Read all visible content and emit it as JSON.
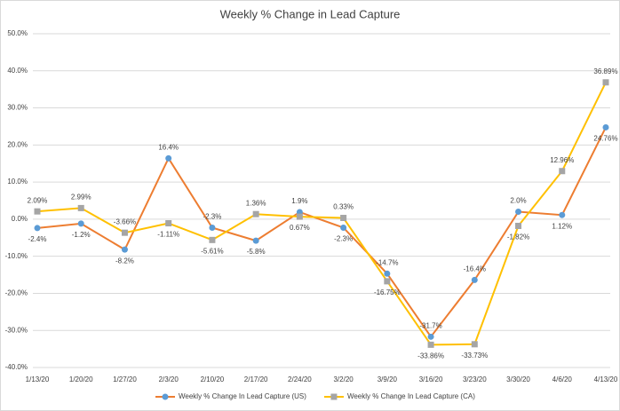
{
  "chart_data": {
    "type": "line",
    "title": "Weekly % Change in Lead Capture",
    "categories": [
      "1/13/20",
      "1/20/20",
      "1/27/20",
      "2/3/20",
      "2/10/20",
      "2/17/20",
      "2/24/20",
      "3/2/20",
      "3/9/20",
      "3/16/20",
      "3/23/20",
      "3/30/20",
      "4/6/20",
      "4/13/20"
    ],
    "series": [
      {
        "name": "Weekly % Change In Lead Capture (US)",
        "color": "#ed7d31",
        "marker_color": "#5b9bd5",
        "values": [
          -2.4,
          -1.2,
          -8.2,
          16.4,
          -2.3,
          -5.8,
          1.9,
          -2.3,
          -14.7,
          -31.7,
          -16.4,
          2.0,
          1.12,
          24.76
        ],
        "value_labels": [
          "-2.4%",
          "-1.2%",
          "-8.2%",
          "16.4%",
          "-2.3%",
          "-5.8%",
          "1.9%",
          "-2.3%",
          "-14.7%",
          "-31.7%",
          "-16.4%",
          "2.0%",
          "1.12%",
          "24.76%"
        ]
      },
      {
        "name": "Weekly % Change In Lead Capture (CA)",
        "color": "#ffc000",
        "marker_color": "#a5a5a5",
        "values": [
          2.09,
          2.99,
          -3.66,
          -1.11,
          -5.61,
          1.36,
          0.67,
          0.33,
          -16.75,
          -33.86,
          -33.73,
          -1.82,
          12.96,
          36.89
        ],
        "value_labels": [
          "2.09%",
          "2.99%",
          "-3.66%",
          "-1.11%",
          "-5.61%",
          "1.36%",
          "0.67%",
          "0.33%",
          "-16.75%",
          "-33.86%",
          "-33.73%",
          "-1.82%",
          "12.96%",
          "36.89%"
        ]
      }
    ],
    "ylim": [
      -40,
      50
    ],
    "yticks": [
      {
        "value": -40,
        "label": "-40.0%"
      },
      {
        "value": -30,
        "label": "-30.0%"
      },
      {
        "value": -20,
        "label": "-20.0%"
      },
      {
        "value": -10,
        "label": "-10.0%"
      },
      {
        "value": 0,
        "label": "0.0%"
      },
      {
        "value": 10,
        "label": "10.0%"
      },
      {
        "value": 20,
        "label": "20.0%"
      },
      {
        "value": 30,
        "label": "30.0%"
      },
      {
        "value": 40,
        "label": "40.0%"
      },
      {
        "value": 50,
        "label": "50.0%"
      }
    ],
    "grid": true,
    "legend": "bottom"
  }
}
